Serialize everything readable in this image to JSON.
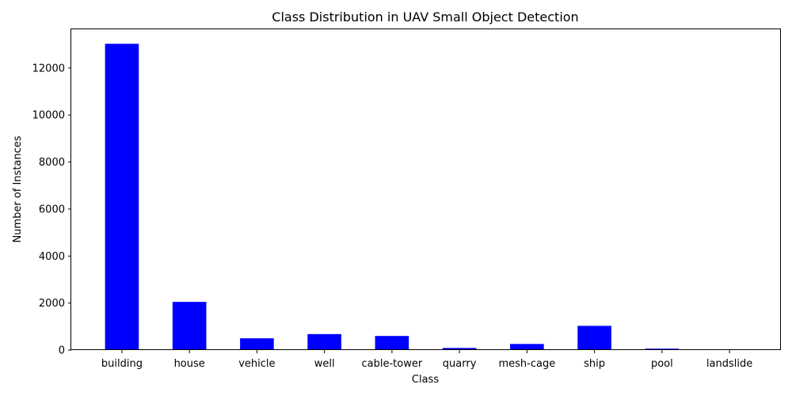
{
  "chart_data": {
    "type": "bar",
    "title": "Class Distribution in UAV Small Object Detection",
    "xlabel": "Class",
    "ylabel": "Number of Instances",
    "categories": [
      "building",
      "house",
      "vehicle",
      "well",
      "cable-tower",
      "quarry",
      "mesh-cage",
      "ship",
      "pool",
      "landslide"
    ],
    "values": [
      13030,
      2050,
      500,
      680,
      600,
      90,
      260,
      1030,
      60,
      20
    ],
    "yticks": [
      0,
      2000,
      4000,
      6000,
      8000,
      10000,
      12000
    ],
    "ylim": [
      0,
      13680
    ],
    "grid": false,
    "bar_color": "#0000ff"
  }
}
